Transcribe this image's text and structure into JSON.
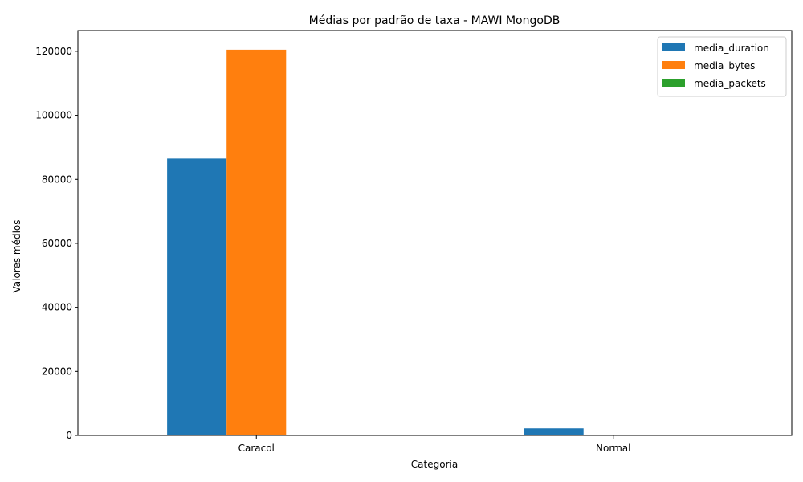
{
  "chart_data": {
    "type": "bar",
    "title": "Médias por padrão de taxa - MAWI MongoDB",
    "xlabel": "Categoria",
    "ylabel": "Valores médios",
    "categories": [
      "Caracol",
      "Normal"
    ],
    "series": [
      {
        "name": "media_duration",
        "color": "#1f77b4",
        "values": [
          86500,
          2200
        ]
      },
      {
        "name": "media_bytes",
        "color": "#ff7f0e",
        "values": [
          120500,
          250
        ]
      },
      {
        "name": "media_packets",
        "color": "#2ca02c",
        "values": [
          250,
          20
        ]
      }
    ],
    "ylim": [
      0,
      126500
    ],
    "yticks": [
      0,
      20000,
      40000,
      60000,
      80000,
      100000,
      120000
    ],
    "legend": "top-right",
    "grid": false
  }
}
